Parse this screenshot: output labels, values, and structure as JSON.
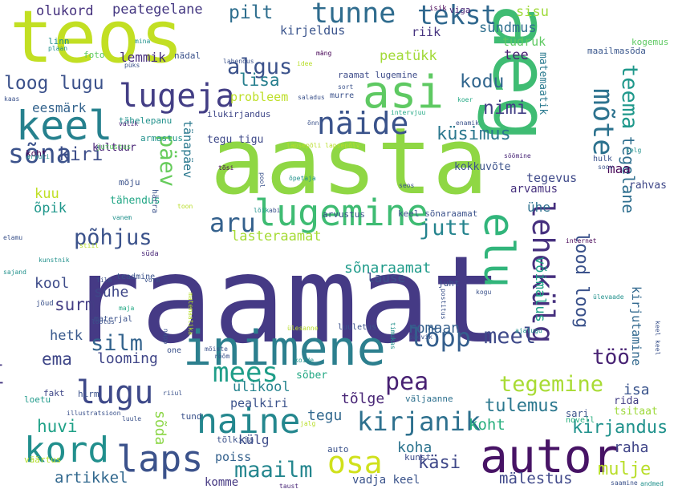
{
  "words": [
    {
      "text": "raamat",
      "color": "#453a85"
    },
    {
      "text": "aasta",
      "color": "#8fd744"
    },
    {
      "text": "teos",
      "color": "#c2df23"
    },
    {
      "text": "aeg",
      "color": "#3fbc73"
    },
    {
      "text": "inimene",
      "color": "#2c7f8e"
    },
    {
      "text": "autor",
      "color": "#471365"
    },
    {
      "text": "asi",
      "color": "#5ec962"
    },
    {
      "text": "keel",
      "color": "#26818e"
    },
    {
      "text": "lugemine",
      "color": "#3fbc73"
    },
    {
      "text": "elu",
      "color": "#31b57b"
    },
    {
      "text": "laps",
      "color": "#3b528b"
    },
    {
      "text": "kord",
      "color": "#218f8d"
    },
    {
      "text": "naine",
      "color": "#24878e"
    },
    {
      "text": "lugu",
      "color": "#3e4989"
    },
    {
      "text": "lugeja",
      "color": "#433e85"
    },
    {
      "text": "näide",
      "color": "#3a538b"
    },
    {
      "text": "tunne",
      "color": "#2f6c8e"
    },
    {
      "text": "mees",
      "color": "#1f9e89"
    },
    {
      "text": "osa",
      "color": "#d0e11c"
    },
    {
      "text": "lehekülg",
      "color": "#46307e"
    },
    {
      "text": "mõte",
      "color": "#2c728e"
    },
    {
      "text": "kirjanik",
      "color": "#2d708e"
    },
    {
      "text": "lõpp",
      "color": "#355f8d"
    },
    {
      "text": "tekst",
      "color": "#30688e"
    },
    {
      "text": "sõna",
      "color": "#3b528b"
    },
    {
      "text": "aru",
      "color": "#34618d"
    },
    {
      "text": "teema",
      "color": "#1f988b"
    },
    {
      "text": "tegemine",
      "color": "#a8db34"
    },
    {
      "text": "maailm",
      "color": "#24868e"
    },
    {
      "text": "jutt",
      "color": "#25848e"
    },
    {
      "text": "päev",
      "color": "#67cc5c"
    },
    {
      "text": "põhjus",
      "color": "#3b528b"
    },
    {
      "text": "pea",
      "color": "#482173"
    },
    {
      "text": "algus",
      "color": "#3b528b"
    },
    {
      "text": "silm",
      "color": "#33638d"
    },
    {
      "text": "meel",
      "color": "#3e4989"
    },
    {
      "text": "loog lugu",
      "color": "#3b518b"
    },
    {
      "text": "küsimus",
      "color": "#2a778e"
    },
    {
      "text": "töö",
      "color": "#482374"
    },
    {
      "text": "huvi",
      "color": "#1fa187"
    },
    {
      "text": "kirjandus",
      "color": "#20928c"
    },
    {
      "text": "ema",
      "color": "#3f4788"
    },
    {
      "text": "kodu",
      "color": "#31668e"
    },
    {
      "text": "nimi",
      "color": "#423f85"
    },
    {
      "text": "lisa",
      "color": "#277f8e"
    },
    {
      "text": "pilt",
      "color": "#2e6e8e"
    },
    {
      "text": "kiri",
      "color": "#3d4e8a"
    },
    {
      "text": "sõnaraamat",
      "color": "#1e9b8a"
    },
    {
      "text": "lood loog",
      "color": "#3b528b"
    },
    {
      "text": "raamatukogu",
      "color": "#453781"
    },
    {
      "text": "käsi",
      "color": "#3f4889"
    },
    {
      "text": "mulje",
      "color": "#b8de29"
    },
    {
      "text": "ülikool",
      "color": "#25848e"
    },
    {
      "text": "tulemus",
      "color": "#2a778e"
    },
    {
      "text": "artikkel",
      "color": "#31688e"
    },
    {
      "text": "romaan",
      "color": "#35608d"
    },
    {
      "text": "looming",
      "color": "#404688"
    },
    {
      "text": "tõlge",
      "color": "#482576"
    },
    {
      "text": "koht",
      "color": "#2ab07f"
    },
    {
      "text": "koha",
      "color": "#2c738e"
    },
    {
      "text": "mälestus",
      "color": "#3f4889"
    },
    {
      "text": "sõda",
      "color": "#8bd646"
    },
    {
      "text": "surm",
      "color": "#433d84"
    },
    {
      "text": "hetk",
      "color": "#38588c"
    },
    {
      "text": "kool",
      "color": "#3e4c8a"
    },
    {
      "text": "suhe",
      "color": "#3f4788"
    },
    {
      "text": "lause",
      "color": "#3c508b"
    },
    {
      "text": "raha",
      "color": "#404588"
    },
    {
      "text": "isa",
      "color": "#3a548c"
    },
    {
      "text": "tegu",
      "color": "#31688e"
    },
    {
      "text": "pealkiri",
      "color": "#3b528b"
    },
    {
      "text": "olukord",
      "color": "#46327e"
    },
    {
      "text": "peategelane",
      "color": "#453882"
    },
    {
      "text": "sisu",
      "color": "#9fda3a"
    },
    {
      "text": "sündmus",
      "color": "#2e6f8e"
    },
    {
      "text": "tüdruk",
      "color": "#5ec962"
    },
    {
      "text": "tee",
      "color": "#482173"
    },
    {
      "text": "peatükk",
      "color": "#a2da37"
    },
    {
      "text": "kirjeldus",
      "color": "#3a548c"
    },
    {
      "text": "riik",
      "color": "#46337f"
    },
    {
      "text": "eesmärk",
      "color": "#33638d"
    },
    {
      "text": "lemmik",
      "color": "#472e7c"
    },
    {
      "text": "probleem",
      "color": "#bddf26"
    },
    {
      "text": "matemaatik",
      "color": "#29798e"
    },
    {
      "text": "kogemus",
      "color": "#5ec962"
    },
    {
      "text": "maailmasõda",
      "color": "#39568c"
    },
    {
      "text": "tegelane",
      "color": "#2e6e8e"
    },
    {
      "text": "võimalus",
      "color": "#1fa187"
    },
    {
      "text": "kirjutamine",
      "color": "#31688e"
    },
    {
      "text": "tegevus",
      "color": "#3e4989"
    },
    {
      "text": "arvamus",
      "color": "#46317e"
    },
    {
      "text": "kokkuvõte",
      "color": "#3b528b"
    },
    {
      "text": "tänapäev",
      "color": "#2a788e"
    },
    {
      "text": "tegu tigu",
      "color": "#3e4989"
    },
    {
      "text": "ilukirjandus",
      "color": "#3f4788"
    },
    {
      "text": "õpik",
      "color": "#1f978b"
    },
    {
      "text": "kuu",
      "color": "#c0df25"
    },
    {
      "text": "kultuur",
      "color": "#482374"
    },
    {
      "text": "tähendus",
      "color": "#21a685"
    },
    {
      "text": "lasteraamat",
      "color": "#a5db36"
    },
    {
      "text": "ühe",
      "color": "#2d718e"
    },
    {
      "text": "maa",
      "color": "#440154"
    },
    {
      "text": "rahvas",
      "color": "#3f4788"
    },
    {
      "text": "külg",
      "color": "#3e4c8a"
    },
    {
      "text": "poiss",
      "color": "#34618d"
    },
    {
      "text": "komme",
      "color": "#453882"
    },
    {
      "text": "vadja keel",
      "color": "#3a538b"
    },
    {
      "text": "kunst",
      "color": "#3e4c8a"
    },
    {
      "text": "sari",
      "color": "#3b528b"
    },
    {
      "text": "novell",
      "color": "#2ab07f"
    },
    {
      "text": "rida",
      "color": "#433e85"
    },
    {
      "text": "tsitaat",
      "color": "#9dd93b"
    },
    {
      "text": "fakt",
      "color": "#3f4788"
    },
    {
      "text": "hirm",
      "color": "#3b528b"
    },
    {
      "text": "loetu",
      "color": "#1f9a8a"
    },
    {
      "text": "sõber",
      "color": "#22a884"
    },
    {
      "text": "väljaanne",
      "color": "#2d708e"
    },
    {
      "text": "tund",
      "color": "#3b528b"
    },
    {
      "text": "tõlkija",
      "color": "#3b528b"
    },
    {
      "text": "väärtus",
      "color": "#b5de2b"
    },
    {
      "text": "viga",
      "color": "#482677"
    },
    {
      "text": "isik",
      "color": "#440154"
    },
    {
      "text": "foto",
      "color": "#5ec962"
    },
    {
      "text": "nädal",
      "color": "#3b528b"
    },
    {
      "text": "linn",
      "color": "#21918c"
    },
    {
      "text": "plaan",
      "color": "#21918c"
    },
    {
      "text": "mina",
      "color": "#21918c"
    },
    {
      "text": "püks",
      "color": "#3b528b"
    },
    {
      "text": "lahendus",
      "color": "#3b528b"
    },
    {
      "text": "idee",
      "color": "#b8de29"
    },
    {
      "text": "mäng",
      "color": "#440154"
    },
    {
      "text": "sort",
      "color": "#3b528b"
    },
    {
      "text": "murre",
      "color": "#3b528b"
    },
    {
      "text": "raamat lugemine",
      "color": "#3e4c8a"
    },
    {
      "text": "koer",
      "color": "#22a884"
    },
    {
      "text": "enamik",
      "color": "#3b528b"
    },
    {
      "text": "kaas",
      "color": "#3b528b"
    },
    {
      "text": "tähelepanu",
      "color": "#21918c"
    },
    {
      "text": "valik",
      "color": "#482677"
    },
    {
      "text": "armastus",
      "color": "#21918c"
    },
    {
      "text": "jutustus",
      "color": "#5ec962"
    },
    {
      "text": "koht",
      "color": "#440154"
    },
    {
      "text": "arvuti",
      "color": "#21918c"
    },
    {
      "text": "õnn",
      "color": "#3b528b"
    },
    {
      "text": "saladus",
      "color": "#3b528b"
    },
    {
      "text": "intervjuu",
      "color": "#22a884"
    },
    {
      "text": "lapsepõli lapsepõlv",
      "color": "#b8de29"
    },
    {
      "text": "söömine",
      "color": "#482677"
    },
    {
      "text": "selg",
      "color": "#21918c"
    },
    {
      "text": "hulk",
      "color": "#3b528b"
    },
    {
      "text": "soov",
      "color": "#3b528b"
    },
    {
      "text": "tõsi",
      "color": "#440154"
    },
    {
      "text": "mõju",
      "color": "#3b528b"
    },
    {
      "text": "pool",
      "color": "#3b528b"
    },
    {
      "text": "õpetaja",
      "color": "#21918c"
    },
    {
      "text": "seos",
      "color": "#3b528b"
    },
    {
      "text": "härra",
      "color": "#3b528b"
    },
    {
      "text": "toon",
      "color": "#b8de29"
    },
    {
      "text": "vanem",
      "color": "#21918c"
    },
    {
      "text": "lõik",
      "color": "#21918c"
    },
    {
      "text": "abi",
      "color": "#3b528b"
    },
    {
      "text": "arvustus",
      "color": "#3b528b"
    },
    {
      "text": "keel sõnaraamat",
      "color": "#3b528b"
    },
    {
      "text": "elamu",
      "color": "#3b528b"
    },
    {
      "text": "internet",
      "color": "#440154"
    },
    {
      "text": "kunstnik",
      "color": "#21918c"
    },
    {
      "text": "stiil",
      "color": "#b8de29"
    },
    {
      "text": "süda",
      "color": "#482677"
    },
    {
      "text": "sajand",
      "color": "#21918c"
    },
    {
      "text": "teadmine",
      "color": "#3b528b"
    },
    {
      "text": "film",
      "color": "#3b528b"
    },
    {
      "text": "vorm",
      "color": "#3b528b"
    },
    {
      "text": "juht",
      "color": "#3b528b"
    },
    {
      "text": "kogu",
      "color": "#3b528b"
    },
    {
      "text": "postitus",
      "color": "#3b528b"
    },
    {
      "text": "ülevaade",
      "color": "#21918c"
    },
    {
      "text": "jõud",
      "color": "#3b528b"
    },
    {
      "text": "maja",
      "color": "#22a884"
    },
    {
      "text": "matemaatika",
      "color": "#b8de29"
    },
    {
      "text": "materjal",
      "color": "#3b528b"
    },
    {
      "text": "lootus",
      "color": "#3b528b"
    },
    {
      "text": "näpp",
      "color": "#3b528b"
    },
    {
      "text": "one",
      "color": "#3b528b"
    },
    {
      "text": "ülesanne",
      "color": "#b8de29"
    },
    {
      "text": "luuletus",
      "color": "#3b528b"
    },
    {
      "text": "timukas",
      "color": "#21918c"
    },
    {
      "text": "päevik",
      "color": "#3b528b"
    },
    {
      "text": "ajalugu",
      "color": "#21918c"
    },
    {
      "text": "keel keel",
      "color": "#3b528b"
    },
    {
      "text": "mõiste",
      "color": "#3b528b"
    },
    {
      "text": "rõõm",
      "color": "#3b528b"
    },
    {
      "text": "koide",
      "color": "#21918c"
    },
    {
      "text": "riiul",
      "color": "#3b528b"
    },
    {
      "text": "illustratsioon",
      "color": "#3b528b"
    },
    {
      "text": "luule",
      "color": "#3b528b"
    },
    {
      "text": "jalg",
      "color": "#b8de29"
    },
    {
      "text": "auto",
      "color": "#3b528b"
    },
    {
      "text": "taust",
      "color": "#482677"
    },
    {
      "text": "saamine",
      "color": "#3b528b"
    },
    {
      "text": "andmed",
      "color": "#21918c"
    }
  ]
}
